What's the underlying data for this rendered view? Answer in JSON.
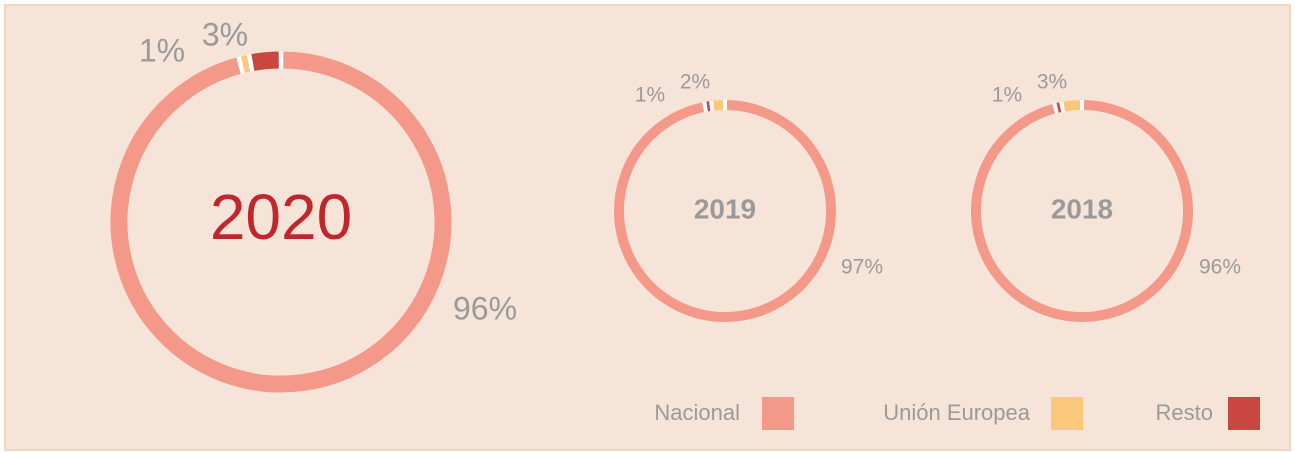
{
  "chart_data": [
    {
      "type": "pie",
      "title": "2020",
      "categories": [
        "Nacional",
        "Unión Europea",
        "Resto"
      ],
      "values": [
        96,
        1,
        3
      ],
      "value_labels": [
        "96%",
        "1%",
        "3%"
      ]
    },
    {
      "type": "pie",
      "title": "2019",
      "categories": [
        "Nacional",
        "Resto",
        "Unión Europea"
      ],
      "values": [
        97,
        1,
        2
      ],
      "value_labels": [
        "97%",
        "1%",
        "2%"
      ]
    },
    {
      "type": "pie",
      "title": "2018",
      "categories": [
        "Nacional",
        "Resto",
        "Unión Europea"
      ],
      "values": [
        96,
        1,
        3
      ],
      "value_labels": [
        "96%",
        "1%",
        "3%"
      ]
    }
  ],
  "legend": {
    "names": [
      "Nacional",
      "Unión Europea",
      "Resto"
    ],
    "colors": [
      "#f4998a",
      "#fbc77a",
      "#c9473f"
    ]
  }
}
